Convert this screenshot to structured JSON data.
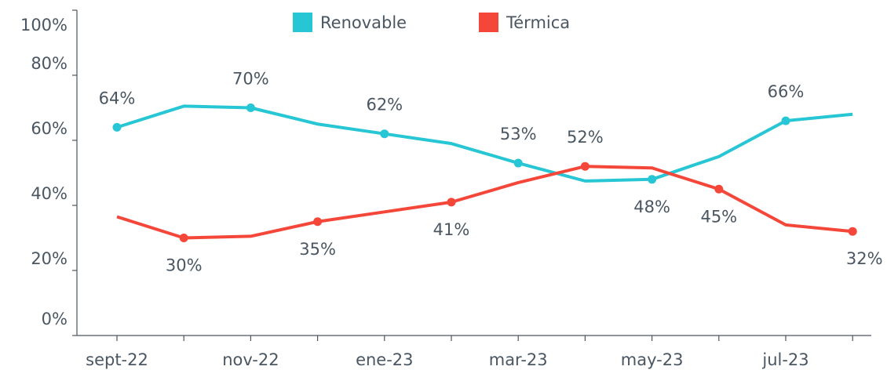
{
  "chart_data": {
    "type": "line",
    "categories": [
      "sept-22",
      null,
      "nov-22",
      null,
      "ene-23",
      null,
      "mar-23",
      null,
      "may-23",
      null,
      "jul-23",
      null
    ],
    "series": [
      {
        "name": "Renovable",
        "color": "#26c6d4",
        "values": [
          64,
          70.5,
          70,
          65,
          62,
          59,
          53,
          47.5,
          48,
          55,
          66,
          68
        ],
        "value_labels": [
          "64%",
          null,
          "70%",
          null,
          "62%",
          null,
          "53%",
          null,
          "48%",
          null,
          "66%",
          null
        ]
      },
      {
        "name": "Térmica",
        "color": "#f4473a",
        "values": [
          36.5,
          30,
          30.5,
          35,
          38,
          41,
          47,
          52,
          51.5,
          45,
          34,
          32
        ],
        "value_labels": [
          null,
          "30%",
          null,
          "35%",
          null,
          "41%",
          null,
          "52%",
          null,
          "45%",
          null,
          "32%"
        ]
      }
    ],
    "ylim": [
      0,
      100
    ],
    "yticks": [
      {
        "value": 0,
        "label": "0%"
      },
      {
        "value": 20,
        "label": "20%"
      },
      {
        "value": 40,
        "label": "40%"
      },
      {
        "value": 60,
        "label": "60%"
      },
      {
        "value": 80,
        "label": "80%"
      },
      {
        "value": 100,
        "label": "100%"
      }
    ],
    "legend": "top"
  }
}
